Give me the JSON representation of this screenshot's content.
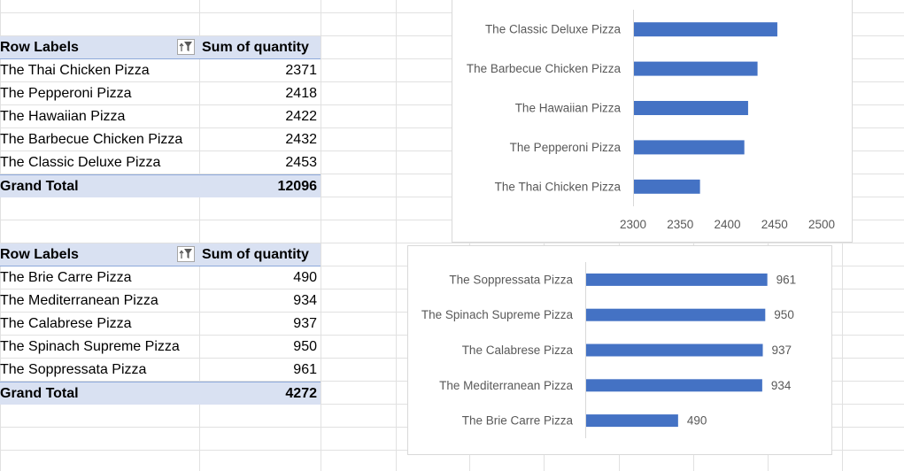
{
  "pivot1": {
    "header_label": "Row Labels",
    "header_value": "Sum of quantity",
    "rows": [
      {
        "label": "The Thai Chicken Pizza",
        "value": "2371"
      },
      {
        "label": "The Pepperoni Pizza",
        "value": "2418"
      },
      {
        "label": "The Hawaiian Pizza",
        "value": "2422"
      },
      {
        "label": "The Barbecue Chicken Pizza",
        "value": "2432"
      },
      {
        "label": "The Classic Deluxe Pizza",
        "value": "2453"
      }
    ],
    "total_label": "Grand Total",
    "total_value": "12096"
  },
  "pivot2": {
    "header_label": "Row Labels",
    "header_value": "Sum of quantity",
    "rows": [
      {
        "label": "The Brie Carre Pizza",
        "value": "490"
      },
      {
        "label": "The Mediterranean Pizza",
        "value": "934"
      },
      {
        "label": "The Calabrese Pizza",
        "value": "937"
      },
      {
        "label": "The Spinach Supreme Pizza",
        "value": "950"
      },
      {
        "label": "The Soppressata Pizza",
        "value": "961"
      }
    ],
    "total_label": "Grand Total",
    "total_value": "4272"
  },
  "colors": {
    "bar": "#4472c4",
    "header_fill": "#d9e1f2",
    "header_border": "#8ea9db",
    "gridline": "#e1e1e1",
    "axis_text": "#595959"
  },
  "chart_data": [
    {
      "type": "bar",
      "orientation": "horizontal",
      "categories": [
        "The Classic Deluxe Pizza",
        "The Barbecue Chicken Pizza",
        "The Hawaiian Pizza",
        "The Pepperoni Pizza",
        "The Thai Chicken Pizza"
      ],
      "values": [
        2453,
        2432,
        2422,
        2418,
        2371
      ],
      "xlim": [
        2300,
        2500
      ],
      "xticks": [
        2300,
        2350,
        2400,
        2450,
        2500
      ],
      "data_labels": false,
      "grid": false
    },
    {
      "type": "bar",
      "orientation": "horizontal",
      "categories": [
        "The Soppressata Pizza",
        "The Spinach Supreme Pizza",
        "The Calabrese Pizza",
        "The Mediterranean Pizza",
        "The Brie Carre Pizza"
      ],
      "values": [
        961,
        950,
        937,
        934,
        490
      ],
      "xlim": [
        0,
        1000
      ],
      "data_labels": true,
      "axis_labels": false,
      "grid": false
    }
  ]
}
